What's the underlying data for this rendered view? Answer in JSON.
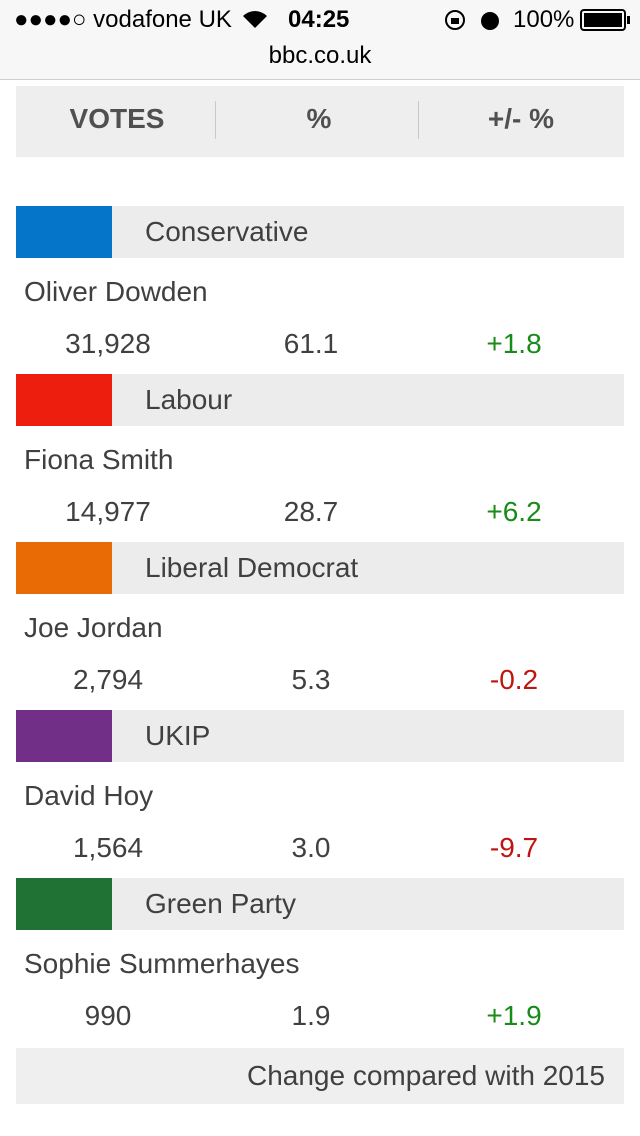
{
  "status_bar": {
    "carrier": "●●●●○ vodafone UK",
    "time": "04:25",
    "battery": "100%"
  },
  "address_bar": {
    "url": "bbc.co.uk"
  },
  "table": {
    "header": [
      "VOTES",
      "%",
      "+/- %"
    ],
    "rows": [
      {
        "party": "Conservative",
        "party_color": "#0575c9",
        "candidate": "Oliver Dowden",
        "votes": "31,928",
        "share": "61.1",
        "change": "+1.8",
        "change_color": "#1a8a1a"
      },
      {
        "party": "Labour",
        "party_color": "#ed1e0e",
        "candidate": "Fiona Smith",
        "votes": "14,977",
        "share": "28.7",
        "change": "+6.2",
        "change_color": "#1a8a1a"
      },
      {
        "party": "Liberal Democrat",
        "party_color": "#e86b05",
        "candidate": "Joe Jordan",
        "votes": "2,794",
        "share": "5.3",
        "change": "-0.2",
        "change_color": "#c0140f"
      },
      {
        "party": "UKIP",
        "party_color": "#712f87",
        "candidate": "David Hoy",
        "votes": "1,564",
        "share": "3.0",
        "change": "-9.7",
        "change_color": "#c0140f"
      },
      {
        "party": "Green Party",
        "party_color": "#1f7134",
        "candidate": "Sophie Summerhayes",
        "votes": "990",
        "share": "1.9",
        "change": "+1.9",
        "change_color": "#1a8a1a"
      }
    ],
    "footnote": "Change compared with 2015"
  }
}
